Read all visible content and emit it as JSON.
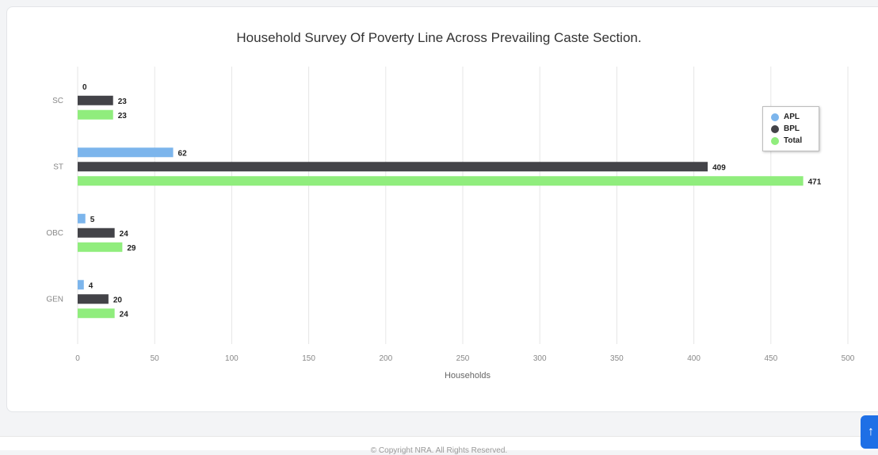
{
  "chart_data": {
    "type": "bar",
    "orientation": "horizontal",
    "title": "Household Survey Of Poverty Line Across Prevailing Caste Section.",
    "xlabel": "Households",
    "ylabel": "",
    "categories": [
      "SC",
      "ST",
      "OBC",
      "GEN"
    ],
    "series": [
      {
        "name": "APL",
        "color": "#7cb5ec",
        "values": [
          0,
          62,
          5,
          4
        ]
      },
      {
        "name": "BPL",
        "color": "#434348",
        "values": [
          23,
          409,
          24,
          20
        ]
      },
      {
        "name": "Total",
        "color": "#90ed7d",
        "values": [
          23,
          471,
          29,
          24
        ]
      }
    ],
    "xlim": [
      0,
      500
    ],
    "xticks": [
      0,
      50,
      100,
      150,
      200,
      250,
      300,
      350,
      400,
      450,
      500
    ],
    "grid": "vertical",
    "data_labels": true,
    "legend": "right"
  },
  "footer": {
    "copyright": "© Copyright NRA. All Rights Reserved."
  },
  "scroll_top": {
    "icon": "arrow-up-icon",
    "glyph": "↑"
  }
}
